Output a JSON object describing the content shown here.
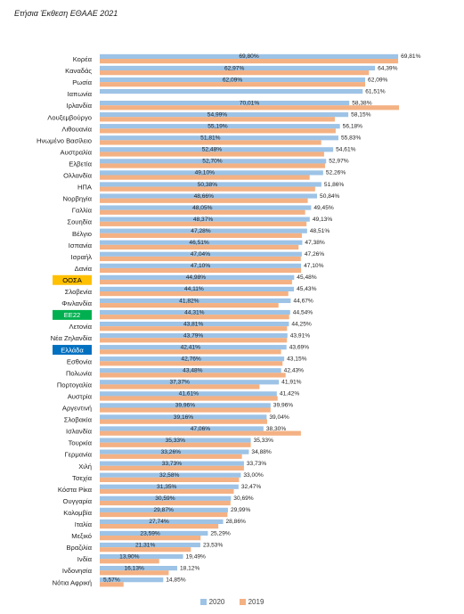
{
  "header": {
    "title": "Ετήσια Έκθεση ΕΘΑΑΕ 2021"
  },
  "colors": {
    "series_2020": "#9DC3E6",
    "series_2019": "#F4B183",
    "oosa_box": "#FFC000",
    "ee22_box": "#00B050",
    "greece_box": "#0070C0"
  },
  "chart_data": {
    "type": "bar",
    "orientation": "horizontal",
    "title": "",
    "xlabel": "",
    "ylabel": "",
    "xlim": [
      0,
      70
    ],
    "grid": false,
    "legend_position": "bottom",
    "categories": [
      "Κορέα",
      "Καναδάς",
      "Ρωσία",
      "Ιαπωνία",
      "Ιρλανδία",
      "Λουξεμβούργο",
      "Λιθουανία",
      "Ηνωμένο Βασίλειο",
      "Αυστραλία",
      "Ελβετία",
      "Ολλανδία",
      "ΗΠΑ",
      "Νορβηγία",
      "Γαλλία",
      "Σουηδία",
      "Βέλγιο",
      "Ισπανία",
      "Ισραήλ",
      "Δανία",
      "ΟΟΣΑ",
      "Σλοβενία",
      "Φινλανδία",
      "ΕΕ22",
      "Λετονία",
      "Νέα Ζηλανδία",
      "Ελλάδα",
      "Εσθονία",
      "Πολωνία",
      "Πορτογαλία",
      "Αυστρία",
      "Αργεντινή",
      "Σλοβακία",
      "Ισλανδία",
      "Τουρκία",
      "Γερμανία",
      "Χιλή",
      "Τσεχία",
      "Κόστα Ρίκα",
      "Ουγγαρία",
      "Κολομβία",
      "Ιταλία",
      "Μεξικό",
      "Βραζιλία",
      "Ινδία",
      "Ινδονησία",
      "Νότια Αφρική"
    ],
    "highlighted": [
      {
        "category": "ΟΟΣΑ",
        "box_color": "#FFC000",
        "text_color": "#000000"
      },
      {
        "category": "ΕΕ22",
        "box_color": "#00B050",
        "text_color": "#ffffff"
      },
      {
        "category": "Ελλάδα",
        "box_color": "#0070C0",
        "text_color": "#ffffff"
      }
    ],
    "series": [
      {
        "name": "2020",
        "color": "#9DC3E6",
        "values": [
          69.81,
          64.39,
          62.09,
          61.51,
          58.38,
          58.15,
          56.18,
          55.83,
          54.61,
          52.97,
          52.26,
          51.86,
          50.84,
          49.45,
          49.13,
          48.51,
          47.38,
          47.26,
          47.1,
          45.48,
          45.43,
          44.67,
          44.54,
          44.25,
          43.91,
          43.69,
          43.15,
          42.43,
          41.91,
          41.42,
          39.96,
          39.04,
          38.3,
          35.33,
          34.88,
          33.73,
          33.0,
          32.47,
          30.69,
          29.99,
          28.86,
          25.29,
          23.53,
          19.49,
          18.12,
          14.85
        ],
        "labels": [
          "69,81%",
          "64,39%",
          "62,09%",
          "61,51%",
          "58,38%",
          "58,15%",
          "56,18%",
          "55,83%",
          "54,61%",
          "52,97%",
          "52,26%",
          "51,86%",
          "50,84%",
          "49,45%",
          "49,13%",
          "48,51%",
          "47,38%",
          "47,26%",
          "47,10%",
          "45,48%",
          "45,43%",
          "44,67%",
          "44,54%",
          "44,25%",
          "43,91%",
          "43,69%",
          "43,15%",
          "42,43%",
          "41,91%",
          "41,42%",
          "39,96%",
          "39,04%",
          "38,30%",
          "35,33%",
          "34,88%",
          "33,73%",
          "33,00%",
          "32,47%",
          "30,69%",
          "29,99%",
          "28,86%",
          "25,29%",
          "23,53%",
          "19,49%",
          "18,12%",
          "14,85%"
        ]
      },
      {
        "name": "2019",
        "color": "#F4B183",
        "values": [
          69.8,
          62.97,
          62.09,
          null,
          70.01,
          54.99,
          55.19,
          51.81,
          52.48,
          52.7,
          49.1,
          50.38,
          48.66,
          48.05,
          48.37,
          47.28,
          46.51,
          47.04,
          47.1,
          44.98,
          44.11,
          41.82,
          44.31,
          43.81,
          43.79,
          42.41,
          42.76,
          43.48,
          37.37,
          41.61,
          39.96,
          39.16,
          47.06,
          35.33,
          33.26,
          33.73,
          32.58,
          31.35,
          30.59,
          29.87,
          27.74,
          23.59,
          21.31,
          13.9,
          16.13,
          5.57
        ],
        "labels": [
          "69,80%",
          "62,97%",
          "62,09%",
          "",
          "70,01%",
          "54,99%",
          "55,19%",
          "51,81%",
          "52,48%",
          "52,70%",
          "49,10%",
          "50,38%",
          "48,66%",
          "48,05%",
          "48,37%",
          "47,28%",
          "46,51%",
          "47,04%",
          "47,10%",
          "44,98%",
          "44,11%",
          "41,82%",
          "44,31%",
          "43,81%",
          "43,79%",
          "42,41%",
          "42,76%",
          "43,48%",
          "37,37%",
          "41,61%",
          "39,96%",
          "39,16%",
          "47,06%",
          "35,33%",
          "33,26%",
          "33,73%",
          "32,58%",
          "31,35%",
          "30,59%",
          "29,87%",
          "27,74%",
          "23,59%",
          "21,31%",
          "13,90%",
          "16,13%",
          "5,57%"
        ]
      }
    ]
  }
}
